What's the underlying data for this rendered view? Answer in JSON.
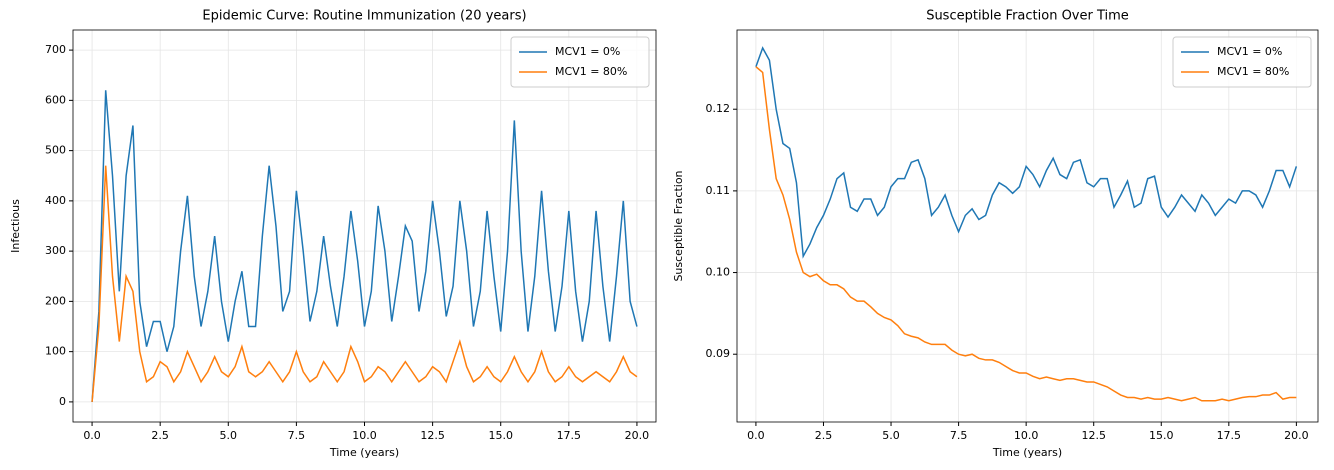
{
  "chart_data": [
    {
      "type": "line",
      "title": "Epidemic Curve: Routine Immunization (20 years)",
      "xlabel": "Time (years)",
      "ylabel": "Infectious",
      "x": [
        0,
        0.25,
        0.5,
        0.75,
        1,
        1.25,
        1.5,
        1.75,
        2,
        2.25,
        2.5,
        2.75,
        3,
        3.25,
        3.5,
        3.75,
        4,
        4.25,
        4.5,
        4.75,
        5,
        5.25,
        5.5,
        5.75,
        6,
        6.25,
        6.5,
        6.75,
        7,
        7.25,
        7.5,
        7.75,
        8,
        8.25,
        8.5,
        8.75,
        9,
        9.25,
        9.5,
        9.75,
        10,
        10.25,
        10.5,
        10.75,
        11,
        11.25,
        11.5,
        11.75,
        12,
        12.25,
        12.5,
        12.75,
        13,
        13.25,
        13.5,
        13.75,
        14,
        14.25,
        14.5,
        14.75,
        15,
        15.25,
        15.5,
        15.75,
        16,
        16.25,
        16.5,
        16.75,
        17,
        17.25,
        17.5,
        17.75,
        18,
        18.25,
        18.5,
        18.75,
        19,
        19.25,
        19.5,
        19.75,
        20
      ],
      "series": [
        {
          "name": "MCV1 = 0%",
          "color": "#1f77b4",
          "values": [
            0,
            180,
            620,
            450,
            220,
            450,
            550,
            200,
            110,
            160,
            160,
            100,
            150,
            300,
            410,
            250,
            150,
            220,
            330,
            200,
            120,
            200,
            260,
            150,
            150,
            330,
            470,
            350,
            180,
            220,
            420,
            300,
            160,
            220,
            330,
            230,
            150,
            250,
            380,
            280,
            150,
            220,
            390,
            300,
            160,
            250,
            350,
            320,
            180,
            260,
            400,
            300,
            170,
            230,
            400,
            300,
            150,
            220,
            380,
            250,
            140,
            300,
            560,
            300,
            140,
            250,
            420,
            260,
            140,
            230,
            380,
            220,
            120,
            200,
            380,
            230,
            120,
            250,
            400,
            200,
            150
          ]
        },
        {
          "name": "MCV1 = 80%",
          "color": "#ff7f0e",
          "values": [
            0,
            150,
            470,
            250,
            120,
            250,
            220,
            100,
            40,
            50,
            80,
            70,
            40,
            60,
            100,
            70,
            40,
            60,
            90,
            60,
            50,
            70,
            110,
            60,
            50,
            60,
            80,
            60,
            40,
            60,
            100,
            60,
            40,
            50,
            80,
            60,
            40,
            60,
            110,
            80,
            40,
            50,
            70,
            60,
            40,
            60,
            80,
            60,
            40,
            50,
            70,
            60,
            40,
            80,
            120,
            70,
            40,
            50,
            70,
            50,
            40,
            60,
            90,
            60,
            40,
            60,
            100,
            60,
            40,
            50,
            70,
            50,
            40,
            50,
            60,
            50,
            40,
            60,
            90,
            60,
            50
          ]
        }
      ],
      "xlim": [
        -0.7,
        20.7
      ],
      "ylim": [
        -40,
        740
      ],
      "xticks": [
        {
          "value": 0,
          "label": "0.0"
        },
        2.5,
        {
          "value": 5,
          "label": "5.0"
        },
        7.5,
        {
          "value": 10,
          "label": "10.0"
        },
        12.5,
        {
          "value": 15,
          "label": "15.0"
        },
        17.5,
        {
          "value": 20,
          "label": "20.0"
        }
      ],
      "yticks": [
        0,
        100,
        200,
        300,
        400,
        500,
        600,
        700
      ],
      "grid": true,
      "legend": "upper right"
    },
    {
      "type": "line",
      "title": "Susceptible Fraction Over Time",
      "xlabel": "Time (years)",
      "ylabel": "Susceptible Fraction",
      "x": [
        0,
        0.25,
        0.5,
        0.75,
        1,
        1.25,
        1.5,
        1.75,
        2,
        2.25,
        2.5,
        2.75,
        3,
        3.25,
        3.5,
        3.75,
        4,
        4.25,
        4.5,
        4.75,
        5,
        5.25,
        5.5,
        5.75,
        6,
        6.25,
        6.5,
        6.75,
        7,
        7.25,
        7.5,
        7.75,
        8,
        8.25,
        8.5,
        8.75,
        9,
        9.25,
        9.5,
        9.75,
        10,
        10.25,
        10.5,
        10.75,
        11,
        11.25,
        11.5,
        11.75,
        12,
        12.25,
        12.5,
        12.75,
        13,
        13.25,
        13.5,
        13.75,
        14,
        14.25,
        14.5,
        14.75,
        15,
        15.25,
        15.5,
        15.75,
        16,
        16.25,
        16.5,
        16.75,
        17,
        17.25,
        17.5,
        17.75,
        18,
        18.25,
        18.5,
        18.75,
        19,
        19.25,
        19.5,
        19.75,
        20
      ],
      "series": [
        {
          "name": "MCV1 = 0%",
          "color": "#1f77b4",
          "values": [
            0.1252,
            0.1275,
            0.126,
            0.12,
            0.1158,
            0.1152,
            0.111,
            0.102,
            0.1035,
            0.1055,
            0.107,
            0.109,
            0.1115,
            0.1122,
            0.108,
            0.1075,
            0.109,
            0.109,
            0.107,
            0.108,
            0.1105,
            0.1115,
            0.1115,
            0.1135,
            0.1138,
            0.1115,
            0.107,
            0.108,
            0.1095,
            0.107,
            0.105,
            0.107,
            0.1078,
            0.1065,
            0.107,
            0.1095,
            0.111,
            0.1105,
            0.1097,
            0.1105,
            0.113,
            0.112,
            0.1105,
            0.1125,
            0.114,
            0.112,
            0.1115,
            0.1135,
            0.1138,
            0.111,
            0.1105,
            0.1115,
            0.1115,
            0.108,
            0.1095,
            0.1112,
            0.108,
            0.1085,
            0.1115,
            0.1118,
            0.108,
            0.1068,
            0.108,
            0.1095,
            0.1085,
            0.1075,
            0.1095,
            0.1085,
            0.107,
            0.108,
            0.109,
            0.1085,
            0.11,
            0.11,
            0.1095,
            0.108,
            0.11,
            0.1125,
            0.1125,
            0.1105,
            0.113
          ]
        },
        {
          "name": "MCV1 = 80%",
          "color": "#ff7f0e",
          "values": [
            0.1252,
            0.1245,
            0.1175,
            0.1115,
            0.1095,
            0.1065,
            0.1025,
            0.1,
            0.0995,
            0.0998,
            0.099,
            0.0985,
            0.0985,
            0.098,
            0.097,
            0.0965,
            0.0965,
            0.0958,
            0.095,
            0.0945,
            0.0942,
            0.0935,
            0.0925,
            0.0922,
            0.092,
            0.0915,
            0.0912,
            0.0912,
            0.0912,
            0.0905,
            0.09,
            0.0898,
            0.09,
            0.0895,
            0.0893,
            0.0893,
            0.089,
            0.0885,
            0.088,
            0.0877,
            0.0877,
            0.0873,
            0.087,
            0.0872,
            0.087,
            0.0868,
            0.087,
            0.087,
            0.0868,
            0.0866,
            0.0866,
            0.0863,
            0.086,
            0.0855,
            0.085,
            0.0847,
            0.0847,
            0.0845,
            0.0847,
            0.0845,
            0.0845,
            0.0847,
            0.0845,
            0.0843,
            0.0845,
            0.0847,
            0.0843,
            0.0843,
            0.0843,
            0.0845,
            0.0843,
            0.0845,
            0.0847,
            0.0848,
            0.0848,
            0.085,
            0.085,
            0.0853,
            0.0845,
            0.0847,
            0.0847
          ]
        }
      ],
      "xlim": [
        -0.7,
        20.8
      ],
      "ylim": [
        0.0817,
        0.1297
      ],
      "xticks": [
        {
          "value": 0,
          "label": "0.0"
        },
        2.5,
        {
          "value": 5,
          "label": "5.0"
        },
        7.5,
        {
          "value": 10,
          "label": "10.0"
        },
        12.5,
        {
          "value": 15,
          "label": "15.0"
        },
        17.5,
        {
          "value": 20,
          "label": "20.0"
        }
      ],
      "yticks": [
        0.09,
        {
          "value": 0.1,
          "label": "0.10"
        },
        0.11,
        0.12
      ],
      "grid": true,
      "legend": "upper right"
    }
  ]
}
